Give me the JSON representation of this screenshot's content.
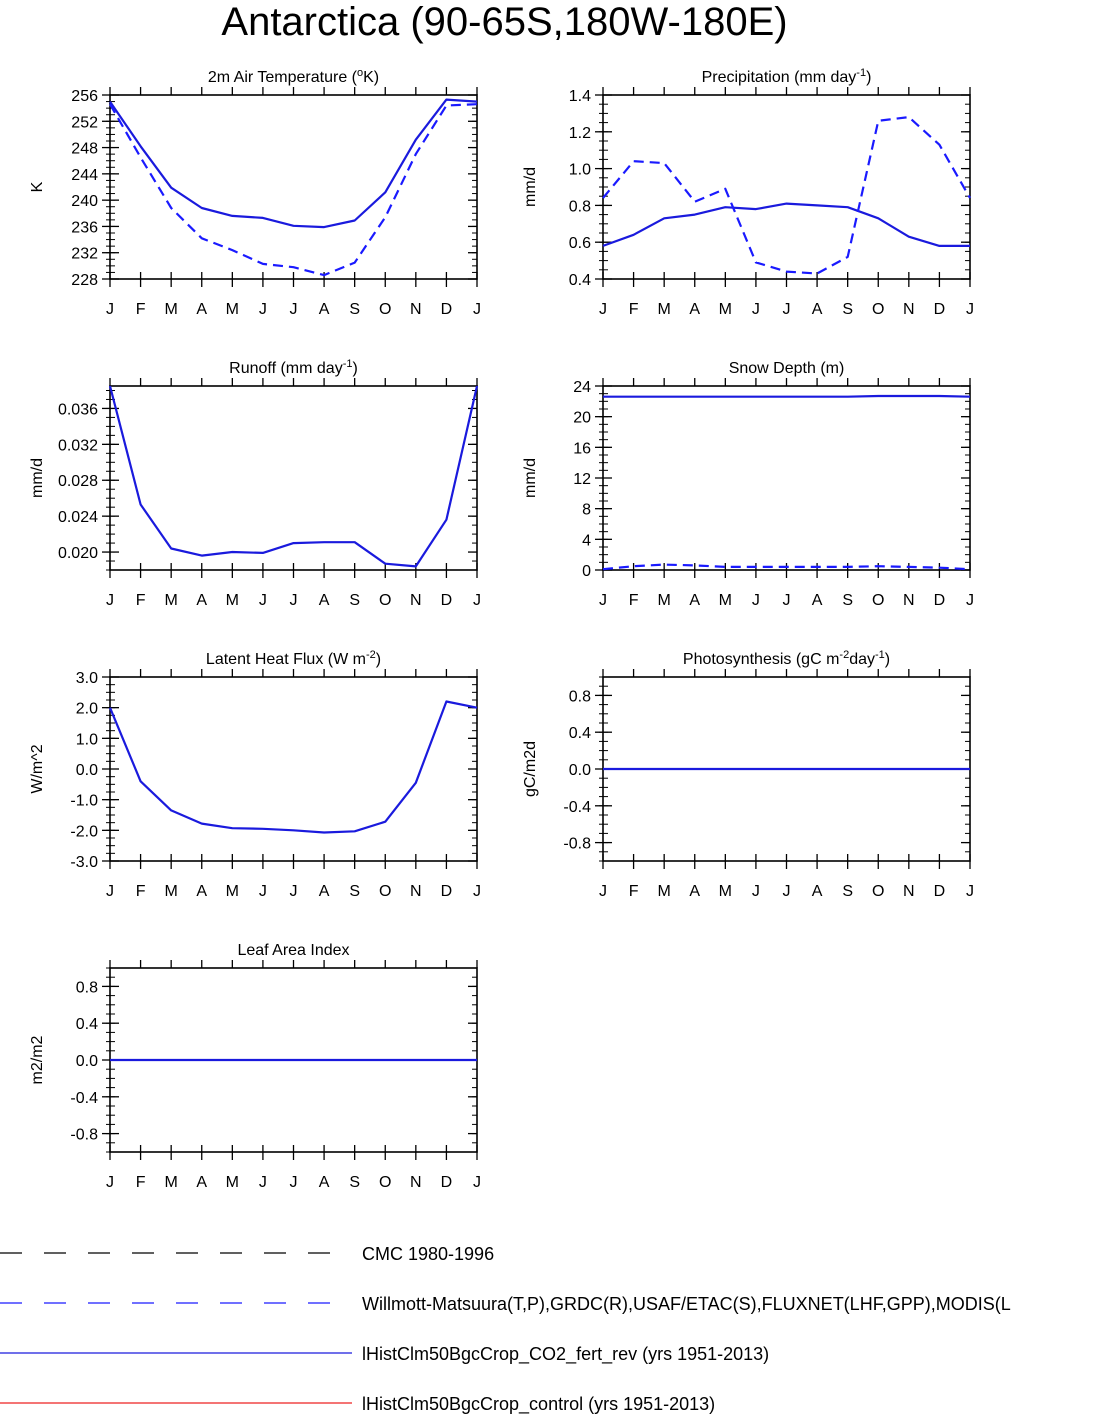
{
  "title": "Antarctica (90-65S,180W-180E)",
  "months": [
    "J",
    "F",
    "M",
    "A",
    "M",
    "J",
    "J",
    "A",
    "S",
    "O",
    "N",
    "D",
    "J"
  ],
  "colors": {
    "obs": "#1a1aff",
    "model": "#1a1add",
    "model2": "#ee2222",
    "axis": "#000000"
  },
  "chart_data": [
    {
      "type": "line",
      "id": "temp",
      "title": "2m Air Temperature (oK)",
      "title_parts": {
        "pre": "2m Air Temperature (",
        "sup": "o",
        "post": "K)"
      },
      "ylabel": "K",
      "ylim": [
        228,
        256
      ],
      "yticks": [
        "256",
        "252",
        "248",
        "244",
        "240",
        "236",
        "232",
        "228"
      ],
      "ytick_values": [
        256,
        252,
        248,
        244,
        240,
        236,
        232,
        228
      ],
      "x": [
        "J",
        "F",
        "M",
        "A",
        "M",
        "J",
        "J",
        "A",
        "S",
        "O",
        "N",
        "D",
        "J"
      ],
      "series": [
        {
          "style": "solid",
          "values": [
            255.0,
            248.2,
            241.9,
            238.8,
            237.6,
            237.3,
            236.1,
            235.9,
            236.9,
            241.2,
            249.2,
            255.3,
            255.0
          ]
        },
        {
          "style": "dashed",
          "values": [
            254.6,
            246.5,
            238.8,
            234.2,
            232.4,
            230.3,
            229.8,
            228.6,
            230.5,
            237.4,
            247.0,
            254.4,
            254.6
          ]
        }
      ]
    },
    {
      "type": "line",
      "id": "precip",
      "title": "Precipitation (mm day-1)",
      "title_parts": {
        "pre": "Precipitation (mm day",
        "sup": "-1",
        "post": ")"
      },
      "ylabel": "mm/d",
      "ylim": [
        0.4,
        1.4
      ],
      "yticks": [
        "1.4",
        "1.2",
        "1.0",
        "0.8",
        "0.6",
        "0.4"
      ],
      "ytick_values": [
        1.4,
        1.2,
        1.0,
        0.8,
        0.6,
        0.4
      ],
      "x": [
        "J",
        "F",
        "M",
        "A",
        "M",
        "J",
        "J",
        "A",
        "S",
        "O",
        "N",
        "D",
        "J"
      ],
      "series": [
        {
          "style": "solid",
          "values": [
            0.58,
            0.64,
            0.73,
            0.75,
            0.79,
            0.78,
            0.81,
            0.8,
            0.79,
            0.73,
            0.63,
            0.58,
            0.58
          ]
        },
        {
          "style": "dashed",
          "values": [
            0.84,
            1.04,
            1.03,
            0.82,
            0.89,
            0.49,
            0.44,
            0.43,
            0.52,
            1.26,
            1.28,
            1.13,
            0.84
          ]
        }
      ]
    },
    {
      "type": "line",
      "id": "runoff",
      "title": "Runoff (mm day-1)",
      "title_parts": {
        "pre": "Runoff (mm day",
        "sup": "-1",
        "post": ")"
      },
      "ylabel": "mm/d",
      "ylim": [
        0.018,
        0.0385
      ],
      "yticks": [
        "0.036",
        "0.032",
        "0.028",
        "0.024",
        "0.020"
      ],
      "ytick_values": [
        0.036,
        0.032,
        0.028,
        0.024,
        0.02
      ],
      "x": [
        "J",
        "F",
        "M",
        "A",
        "M",
        "J",
        "J",
        "A",
        "S",
        "O",
        "N",
        "D",
        "J"
      ],
      "series": [
        {
          "style": "solid",
          "values": [
            0.0385,
            0.0253,
            0.0204,
            0.0196,
            0.02,
            0.0199,
            0.021,
            0.0211,
            0.0211,
            0.0187,
            0.0184,
            0.0236,
            0.0385
          ]
        }
      ]
    },
    {
      "type": "line",
      "id": "snow",
      "title": "Snow Depth (m)",
      "title_parts": {
        "pre": "Snow Depth (m)",
        "sup": "",
        "post": ""
      },
      "ylabel": "mm/d",
      "ylim": [
        0,
        24
      ],
      "yticks": [
        "24",
        "20",
        "16",
        "12",
        "8",
        "4",
        "0"
      ],
      "ytick_values": [
        24,
        20,
        16,
        12,
        8,
        4,
        0
      ],
      "x": [
        "J",
        "F",
        "M",
        "A",
        "M",
        "J",
        "J",
        "A",
        "S",
        "O",
        "N",
        "D",
        "J"
      ],
      "series": [
        {
          "style": "solid",
          "values": [
            22.6,
            22.6,
            22.6,
            22.6,
            22.6,
            22.6,
            22.6,
            22.6,
            22.6,
            22.7,
            22.7,
            22.7,
            22.6
          ]
        },
        {
          "style": "dashed",
          "values": [
            0.1,
            0.5,
            0.7,
            0.6,
            0.4,
            0.4,
            0.4,
            0.4,
            0.4,
            0.5,
            0.4,
            0.3,
            0.1
          ]
        }
      ]
    },
    {
      "type": "line",
      "id": "lhf",
      "title": "Latent Heat Flux (W m-2)",
      "title_parts": {
        "pre": "Latent Heat Flux (W m",
        "sup": "-2",
        "post": ")"
      },
      "ylabel": "W/m^2",
      "ylim": [
        -3.0,
        3.0
      ],
      "yticks": [
        "3.0",
        "2.0",
        "1.0",
        "0.0",
        "-1.0",
        "-2.0",
        "-3.0"
      ],
      "ytick_values": [
        3,
        2,
        1,
        0,
        -1,
        -2,
        -3
      ],
      "x": [
        "J",
        "F",
        "M",
        "A",
        "M",
        "J",
        "J",
        "A",
        "S",
        "O",
        "N",
        "D",
        "J"
      ],
      "series": [
        {
          "style": "solid",
          "values": [
            2.0,
            -0.4,
            -1.35,
            -1.78,
            -1.93,
            -1.95,
            -2.0,
            -2.07,
            -2.03,
            -1.72,
            -0.45,
            2.2,
            2.0
          ]
        }
      ]
    },
    {
      "type": "line",
      "id": "photo",
      "title": "Photosynthesis (gC m-2day-1)",
      "title_parts": {
        "pre": "Photosynthesis (gC m",
        "sup": "-2",
        "post": "day",
        "sup2": "-1",
        "post2": ")"
      },
      "ylabel": "gC/m2d",
      "ylim": [
        -1.0,
        1.0
      ],
      "yticks": [
        "0.8",
        "0.4",
        "0.0",
        "-0.4",
        "-0.8"
      ],
      "ytick_values": [
        0.8,
        0.4,
        0.0,
        -0.4,
        -0.8
      ],
      "x": [
        "J",
        "F",
        "M",
        "A",
        "M",
        "J",
        "J",
        "A",
        "S",
        "O",
        "N",
        "D",
        "J"
      ],
      "series": [
        {
          "style": "solid",
          "values": [
            0,
            0,
            0,
            0,
            0,
            0,
            0,
            0,
            0,
            0,
            0,
            0,
            0
          ]
        }
      ]
    },
    {
      "type": "line",
      "id": "lai",
      "title": "Leaf Area Index",
      "title_parts": {
        "pre": "Leaf Area Index",
        "sup": "",
        "post": ""
      },
      "ylabel": "m2/m2",
      "ylim": [
        -1.0,
        1.0
      ],
      "yticks": [
        "0.8",
        "0.4",
        "0.0",
        "-0.4",
        "-0.8"
      ],
      "ytick_values": [
        0.8,
        0.4,
        0.0,
        -0.4,
        -0.8
      ],
      "x": [
        "J",
        "F",
        "M",
        "A",
        "M",
        "J",
        "J",
        "A",
        "S",
        "O",
        "N",
        "D",
        "J"
      ],
      "series": [
        {
          "style": "solid",
          "values": [
            0,
            0,
            0,
            0,
            0,
            0,
            0,
            0,
            0,
            0,
            0,
            0,
            0
          ]
        }
      ]
    }
  ],
  "legend": [
    {
      "label": "CMC 1980-1996",
      "style": "dashed",
      "color": "#000000"
    },
    {
      "label": "Willmott-Matsuura(T,P),GRDC(R),USAF/ETAC(S),FLUXNET(LHF,GPP),MODIS(L",
      "style": "dashed",
      "color": "#1a1aff"
    },
    {
      "label": "lHistClm50BgcCrop_CO2_fert_rev (yrs 1951-2013)",
      "style": "solid",
      "color": "#1a1add"
    },
    {
      "label": "lHistClm50BgcCrop_control (yrs 1951-2013)",
      "style": "solid",
      "color": "#ee2222"
    }
  ]
}
